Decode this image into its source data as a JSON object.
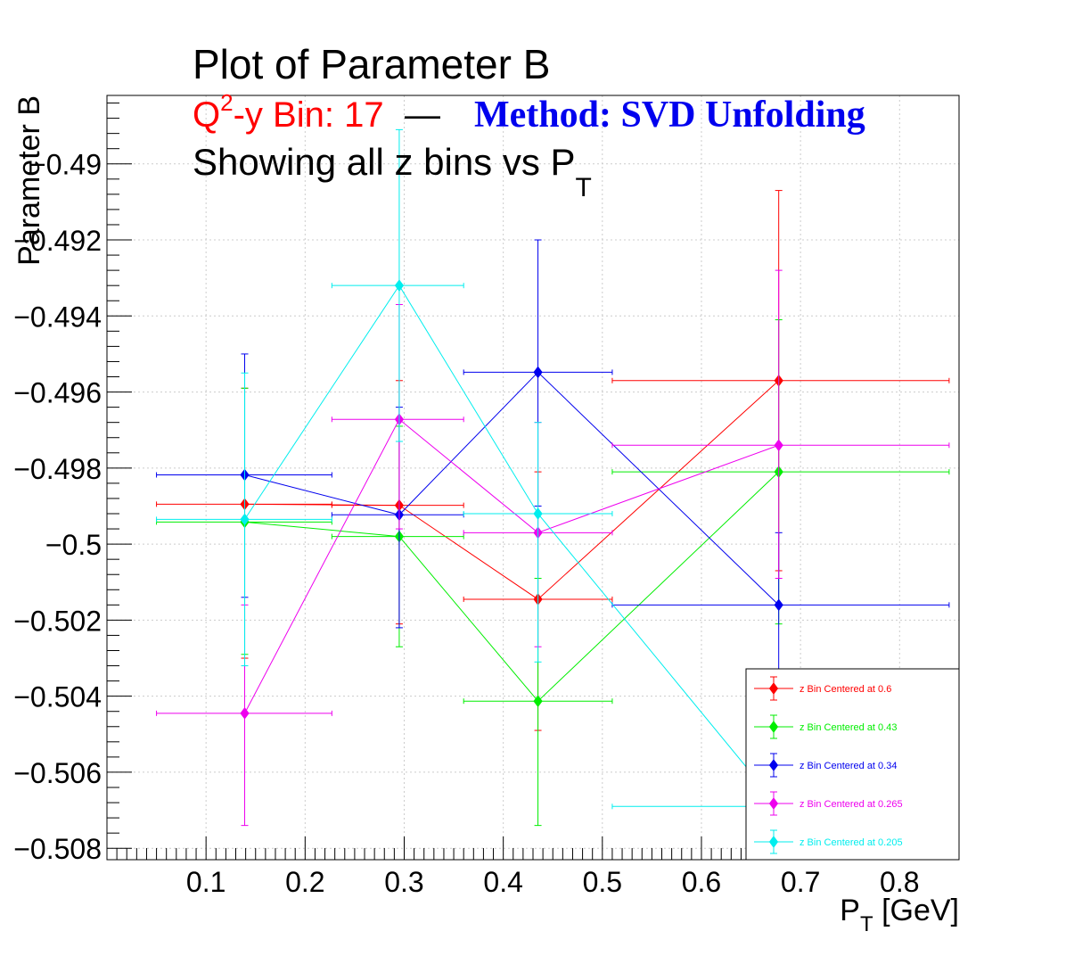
{
  "chart_data": {
    "type": "scatter",
    "title": "Plot of Parameter B",
    "subtitle": {
      "q2_prefix": "Q",
      "q2_sup": "2",
      "bin_text": "-y Bin: 17",
      "dash": "—",
      "method": "Method: SVD Unfolding",
      "line3_main": "Showing all z bins vs P",
      "line3_sub": "T"
    },
    "xlabel": {
      "main": "P",
      "sub": "T",
      "rest": " [GeV]"
    },
    "ylabel": "Parameter B",
    "xlim": [
      0.0,
      0.86
    ],
    "ylim": [
      -0.5083,
      -0.4882
    ],
    "x_ticks": [
      {
        "v": 0.1,
        "label": "0.1"
      },
      {
        "v": 0.2,
        "label": "0.2"
      },
      {
        "v": 0.3,
        "label": "0.3"
      },
      {
        "v": 0.4,
        "label": "0.4"
      },
      {
        "v": 0.5,
        "label": "0.5"
      },
      {
        "v": 0.6,
        "label": "0.6"
      },
      {
        "v": 0.7,
        "label": "0.7"
      },
      {
        "v": 0.8,
        "label": "0.8"
      }
    ],
    "y_ticks": [
      {
        "v": -0.49,
        "label": "−0.49"
      },
      {
        "v": -0.492,
        "label": "−0.492"
      },
      {
        "v": -0.494,
        "label": "−0.494"
      },
      {
        "v": -0.496,
        "label": "−0.496"
      },
      {
        "v": -0.498,
        "label": "−0.498"
      },
      {
        "v": -0.5,
        "label": "−0.5"
      },
      {
        "v": -0.502,
        "label": "−0.502"
      },
      {
        "v": -0.504,
        "label": "−0.504"
      },
      {
        "v": -0.506,
        "label": "−0.506"
      },
      {
        "v": -0.508,
        "label": "−0.508"
      }
    ],
    "grid": true,
    "legend_position": "bottom-right",
    "series": [
      {
        "name": "z Bin Centered at 0.6",
        "color": "#ff0000",
        "points": [
          {
            "x": 0.139,
            "y": -0.49895,
            "xlo": 0.05,
            "xhi": 0.227,
            "ylo": -0.503,
            "yhi": -0.4959
          },
          {
            "x": 0.295,
            "y": -0.49898,
            "xlo": 0.227,
            "xhi": 0.36,
            "ylo": -0.5021,
            "yhi": -0.4957
          },
          {
            "x": 0.435,
            "y": -0.50145,
            "xlo": 0.36,
            "xhi": 0.51,
            "ylo": -0.5049,
            "yhi": -0.4981
          },
          {
            "x": 0.678,
            "y": -0.4957,
            "xlo": 0.51,
            "xhi": 0.85,
            "ylo": -0.5007,
            "yhi": -0.4907
          }
        ]
      },
      {
        "name": "z Bin Centered at 0.43",
        "color": "#00ee00",
        "points": [
          {
            "x": 0.139,
            "y": -0.49942,
            "xlo": 0.05,
            "xhi": 0.227,
            "ylo": -0.5029,
            "yhi": -0.4959
          },
          {
            "x": 0.295,
            "y": -0.4998,
            "xlo": 0.227,
            "xhi": 0.36,
            "ylo": -0.5027,
            "yhi": -0.4969
          },
          {
            "x": 0.435,
            "y": -0.50413,
            "xlo": 0.36,
            "xhi": 0.51,
            "ylo": -0.5074,
            "yhi": -0.5009
          },
          {
            "x": 0.678,
            "y": -0.4981,
            "xlo": 0.51,
            "xhi": 0.85,
            "ylo": -0.5021,
            "yhi": -0.4941
          }
        ]
      },
      {
        "name": "z Bin Centered at 0.34",
        "color": "#0000ee",
        "points": [
          {
            "x": 0.139,
            "y": -0.49818,
            "xlo": 0.05,
            "xhi": 0.227,
            "ylo": -0.5014,
            "yhi": -0.495
          },
          {
            "x": 0.295,
            "y": -0.49923,
            "xlo": 0.227,
            "xhi": 0.36,
            "ylo": -0.5022,
            "yhi": -0.4964
          },
          {
            "x": 0.435,
            "y": -0.49548,
            "xlo": 0.36,
            "xhi": 0.51,
            "ylo": -0.499,
            "yhi": -0.492
          },
          {
            "x": 0.678,
            "y": -0.5016,
            "xlo": 0.51,
            "xhi": 0.85,
            "ylo": -0.5035,
            "yhi": -0.4997
          }
        ]
      },
      {
        "name": "z Bin Centered at 0.265",
        "color": "#ee00ee",
        "points": [
          {
            "x": 0.139,
            "y": -0.50445,
            "xlo": 0.05,
            "xhi": 0.227,
            "ylo": -0.5074,
            "yhi": -0.5016
          },
          {
            "x": 0.295,
            "y": -0.49672,
            "xlo": 0.227,
            "xhi": 0.36,
            "ylo": -0.4996,
            "yhi": -0.4937
          },
          {
            "x": 0.435,
            "y": -0.4997,
            "xlo": 0.36,
            "xhi": 0.51,
            "ylo": -0.5027,
            "yhi": -0.4968
          },
          {
            "x": 0.678,
            "y": -0.4974,
            "xlo": 0.51,
            "xhi": 0.85,
            "ylo": -0.5009,
            "yhi": -0.4928
          }
        ]
      },
      {
        "name": "z Bin Centered at 0.205",
        "color": "#00eeee",
        "points": [
          {
            "x": 0.139,
            "y": -0.49935,
            "xlo": 0.05,
            "xhi": 0.227,
            "ylo": -0.5032,
            "yhi": -0.4955
          },
          {
            "x": 0.295,
            "y": -0.4932,
            "xlo": 0.227,
            "xhi": 0.36,
            "ylo": -0.4973,
            "yhi": -0.4891
          },
          {
            "x": 0.435,
            "y": -0.4992,
            "xlo": 0.36,
            "xhi": 0.51,
            "ylo": -0.5031,
            "yhi": -0.4968
          },
          {
            "x": 0.678,
            "y": -0.5069,
            "xlo": 0.51,
            "xhi": 0.85,
            "ylo": -0.509,
            "yhi": -0.5048
          }
        ]
      }
    ]
  }
}
